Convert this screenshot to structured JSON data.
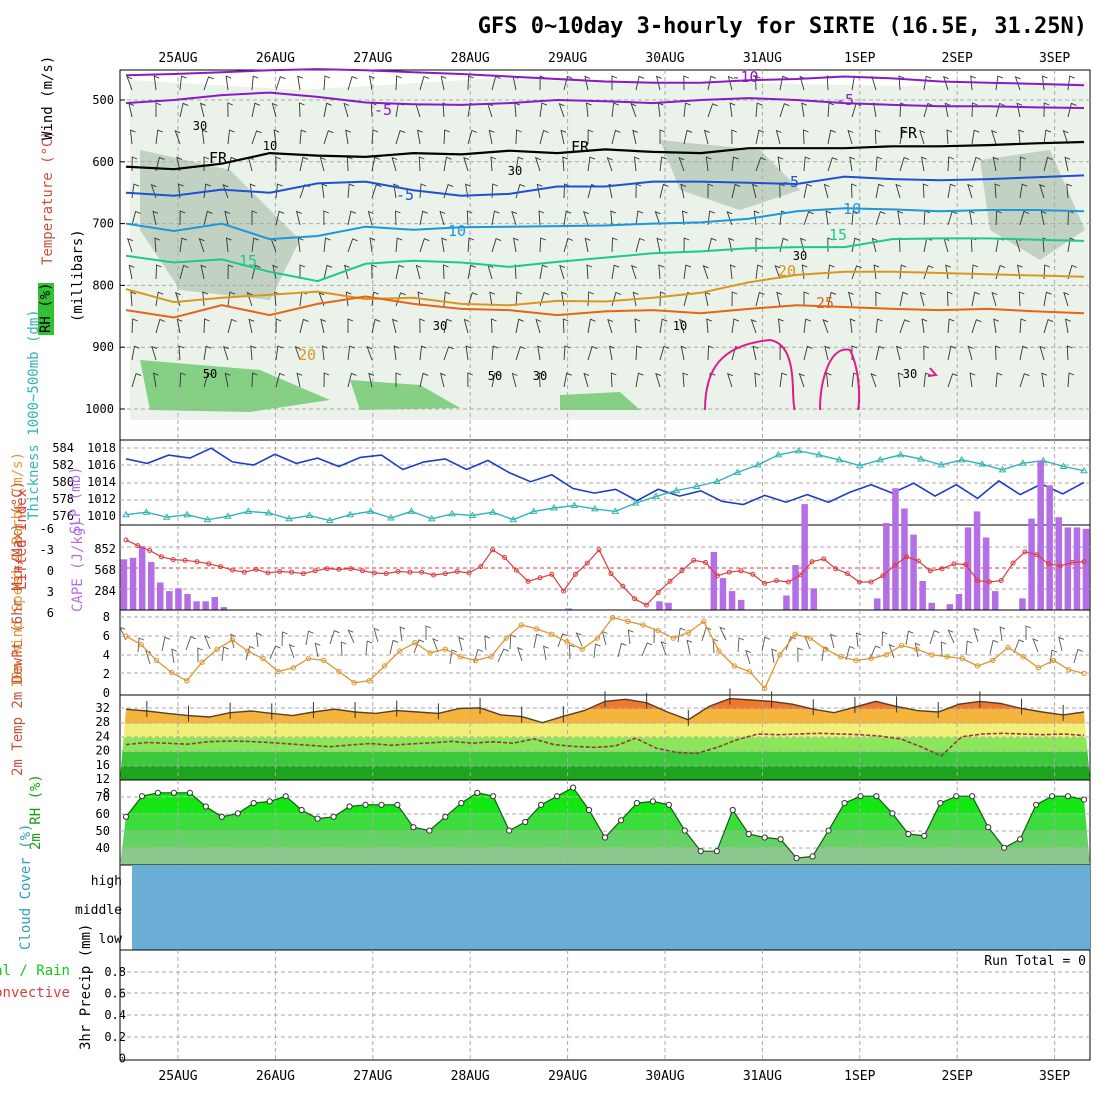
{
  "title": "GFS 0~10day 3-hourly for SIRTE (16.5E, 31.25N)",
  "dates": [
    "25AUG",
    "26AUG",
    "27AUG",
    "28AUG",
    "29AUG",
    "30AUG",
    "31AUG",
    "1SEP",
    "2SEP",
    "3SEP"
  ],
  "colors": {
    "purple": "#8a19c8",
    "black": "#000000",
    "blue": "#1e50d2",
    "lightblue": "#1e96dc",
    "teal": "#1ec88c",
    "orange": "#dc961e",
    "darkorange": "#e66414",
    "magenta": "#dc1e8c",
    "slp": "#1e3cc8",
    "thickness": "#32b4b4",
    "lifted": "#dc3c3c",
    "cape": "#b46ee6",
    "wind": "#dc9632",
    "rh": "#10e010",
    "cloud": "#6aaed6"
  },
  "chart_data": [
    {
      "type": "line",
      "title": "Upper-air time-height section",
      "ylabel_parts": [
        "RH (%)",
        "Temperature (°C)",
        "Wind (m/s)",
        "(millibars)"
      ],
      "y_ticks": [
        "500",
        "600",
        "700",
        "800",
        "900",
        "1000"
      ],
      "ylim": [
        1000,
        450
      ],
      "contour_labels": [
        {
          "text": "-10",
          "series": "purple"
        },
        {
          "text": "-5",
          "series": "purple"
        },
        {
          "text": "-5",
          "series": "purple"
        },
        {
          "text": "FR",
          "series": "black"
        },
        {
          "text": "FR",
          "series": "black"
        },
        {
          "text": "FR",
          "series": "black"
        },
        {
          "text": "-5",
          "series": "blue"
        },
        {
          "text": "-5",
          "series": "blue"
        },
        {
          "text": "10",
          "series": "lightblue"
        },
        {
          "text": "10",
          "series": "lightblue"
        },
        {
          "text": "15",
          "series": "teal"
        },
        {
          "text": "15",
          "series": "teal"
        },
        {
          "text": "20",
          "series": "orange"
        },
        {
          "text": "25",
          "series": "darkorange"
        },
        {
          "text": "20",
          "series": "orange"
        }
      ],
      "rh_labels": [
        "30",
        "10",
        "30",
        "30",
        "50",
        "50",
        "30",
        "10",
        "30",
        "30"
      ],
      "series": [
        {
          "color": "purple",
          "values": [
            460,
            458,
            455,
            452,
            450,
            452,
            455,
            458,
            462,
            466,
            470,
            472,
            472,
            468,
            466,
            462,
            465,
            470,
            472,
            474,
            476
          ]
        },
        {
          "color": "purple",
          "values": [
            505,
            500,
            492,
            488,
            495,
            504,
            507,
            508,
            505,
            500,
            502,
            505,
            500,
            497,
            500,
            505,
            508,
            510,
            510,
            512,
            513
          ]
        },
        {
          "color": "black",
          "values": [
            608,
            612,
            603,
            586,
            590,
            592,
            586,
            588,
            582,
            586,
            580,
            584,
            586,
            578,
            578,
            578,
            575,
            575,
            573,
            570,
            568
          ]
        },
        {
          "color": "blue",
          "values": [
            650,
            655,
            645,
            650,
            635,
            632,
            646,
            655,
            652,
            640,
            640,
            632,
            632,
            634,
            636,
            624,
            628,
            630,
            628,
            625,
            622
          ]
        },
        {
          "color": "lightblue",
          "values": [
            700,
            712,
            700,
            725,
            720,
            705,
            710,
            706,
            705,
            704,
            703,
            700,
            698,
            692,
            680,
            675,
            677,
            680,
            678,
            678,
            680
          ]
        },
        {
          "color": "teal",
          "values": [
            752,
            763,
            758,
            778,
            793,
            765,
            760,
            763,
            770,
            762,
            755,
            748,
            745,
            740,
            738,
            738,
            725,
            724,
            724,
            726,
            728
          ]
        },
        {
          "color": "orange",
          "values": [
            806,
            827,
            820,
            815,
            810,
            822,
            820,
            830,
            832,
            825,
            826,
            820,
            812,
            795,
            783,
            778,
            778,
            780,
            782,
            784,
            786
          ]
        },
        {
          "color": "darkorange",
          "values": [
            840,
            852,
            832,
            848,
            830,
            818,
            830,
            838,
            840,
            848,
            842,
            840,
            845,
            838,
            832,
            835,
            838,
            840,
            838,
            842,
            845
          ]
        }
      ]
    },
    {
      "type": "line",
      "ylabel_left": "Thickness 1000~500mb (dm)",
      "ylabel_right": "SLP (mb)",
      "left_ticks": [
        "584",
        "582",
        "580",
        "578",
        "576"
      ],
      "right_ticks": [
        "1018",
        "1016",
        "1014",
        "1012",
        "1010"
      ],
      "series": [
        {
          "name": "SLP (mb)",
          "values": [
            1016.2,
            1015.6,
            1016.7,
            1016.3,
            1017.6,
            1015.8,
            1015.4,
            1016.8,
            1015.6,
            1016.3,
            1015.2,
            1016.4,
            1016.7,
            1014.8,
            1015.8,
            1016.2,
            1014.8,
            1016.0,
            1014.4,
            1013.2,
            1014.1,
            1012.3,
            1011.7,
            1012.2,
            1010.7,
            1012.2,
            1011.3,
            1012.0,
            1010.6,
            1010.2,
            1011.4,
            1010.5,
            1011.5,
            1010.5,
            1011.8,
            1012.8,
            1011.7,
            1013.0,
            1011.3,
            1012.8,
            1011.0,
            1013.3,
            1011.5,
            1012.9,
            1011.6,
            1013.1
          ]
        },
        {
          "name": "Thickness 1000~500mb (dm)",
          "values": [
            576.4,
            576.7,
            576.1,
            576.4,
            575.8,
            576.2,
            576.8,
            576.6,
            575.9,
            576.3,
            575.7,
            576.4,
            576.8,
            576.0,
            576.8,
            575.9,
            576.5,
            576.3,
            576.7,
            575.8,
            576.8,
            577.2,
            577.5,
            577.1,
            576.8,
            577.8,
            578.6,
            579.3,
            579.8,
            580.4,
            581.5,
            582.4,
            583.6,
            584.1,
            583.6,
            583.0,
            582.3,
            583.0,
            583.6,
            583.1,
            582.4,
            583.0,
            582.5,
            581.8,
            582.6,
            582.9,
            582.2,
            581.7
          ]
        }
      ]
    },
    {
      "type": "bar",
      "ylabel_left": "Lifted Index",
      "ylabel_right": "CAPE (J/kg)",
      "left_ticks": [
        "-6",
        "-3",
        "0",
        "3",
        "6"
      ],
      "right_ticks": [
        "852",
        "568",
        "284"
      ],
      "cape_values": [
        350,
        360,
        440,
        330,
        190,
        130,
        150,
        110,
        60,
        60,
        90,
        20,
        0,
        0,
        0,
        0,
        0,
        0,
        0,
        0,
        0,
        0,
        0,
        0,
        0,
        0,
        0,
        0,
        0,
        0,
        0,
        0,
        0,
        0,
        0,
        0,
        0,
        0,
        0,
        0,
        0,
        0,
        0,
        0,
        0,
        0,
        0,
        0,
        0,
        10,
        0,
        0,
        0,
        0,
        0,
        0,
        0,
        0,
        0,
        60,
        50,
        0,
        0,
        0,
        0,
        400,
        220,
        130,
        70,
        0,
        0,
        0,
        0,
        100,
        310,
        730,
        150,
        0,
        0,
        0,
        0,
        0,
        0,
        80,
        600,
        840,
        700,
        520,
        200,
        50,
        0,
        40,
        110,
        570,
        680,
        500,
        130,
        0,
        0,
        80,
        630,
        1030,
        860,
        640,
        570,
        570,
        560
      ],
      "lifted_values": [
        -4.0,
        -3.2,
        -2.5,
        -1.6,
        -1.2,
        -1.1,
        -0.9,
        -0.6,
        -0.2,
        0.3,
        0.6,
        0.2,
        0.7,
        0.5,
        0.6,
        0.8,
        0.4,
        0.1,
        0.2,
        0.1,
        0.4,
        0.7,
        0.8,
        0.5,
        0.6,
        0.6,
        1.0,
        0.8,
        0.5,
        0.7,
        -0.2,
        -2.6,
        -1.5,
        0.3,
        1.9,
        1.4,
        0.9,
        3.3,
        0.9,
        -0.7,
        -2.6,
        0.8,
        2.6,
        4.4,
        5.3,
        3.5,
        1.9,
        0.4,
        -1.1,
        -0.8,
        1.1,
        0.6,
        0.4,
        0.9,
        2.2,
        1.8,
        2.0,
        1.0,
        -0.9,
        -1.3,
        0.1,
        0.8,
        2.0,
        2.0,
        1.1,
        -0.4,
        -1.6,
        -1.0,
        0.4,
        0.1,
        -0.6,
        -0.5,
        1.8,
        2.0,
        1.8,
        -0.7,
        -2.3,
        -1.9,
        -0.6,
        -0.3,
        -0.8,
        -0.9
      ]
    },
    {
      "type": "line",
      "ylabel": "10m Wind Speed & Barbs (m/s)",
      "y_ticks": [
        "8",
        "6",
        "4",
        "2",
        "0"
      ],
      "ylim": [
        0,
        8
      ],
      "series": [
        {
          "name": "Speed",
          "values": [
            6.0,
            5.1,
            3.4,
            2.1,
            1.2,
            3.2,
            4.6,
            5.6,
            4.4,
            3.6,
            2.2,
            2.6,
            3.6,
            3.4,
            2.2,
            1.0,
            1.2,
            2.8,
            4.4,
            5.3,
            4.2,
            4.6,
            3.8,
            3.4,
            3.8,
            5.8,
            7.2,
            6.8,
            6.2,
            5.4,
            4.6,
            5.8,
            8.0,
            7.6,
            7.2,
            6.6,
            5.8,
            6.4,
            7.6,
            4.4,
            2.8,
            2.2,
            0.4,
            4.0,
            6.2,
            5.8,
            4.6,
            3.8,
            3.4,
            3.6,
            4.0,
            5.0,
            4.6,
            4.0,
            3.8,
            3.6,
            2.8,
            3.4,
            4.8,
            3.8,
            2.6,
            3.4,
            2.4,
            2.0
          ]
        }
      ]
    },
    {
      "type": "area",
      "ylabel": "2m Temp 2m DewPt (6hr Min/Max) (°C)",
      "y_ticks": [
        "32",
        "28",
        "24",
        "20",
        "16",
        "12",
        "8"
      ],
      "ylim": [
        8,
        32
      ],
      "series": [
        {
          "name": "2m Temp",
          "values": [
            28.0,
            27.5,
            26.8,
            26.2,
            25.8,
            27.0,
            27.5,
            26.8,
            26.2,
            27.2,
            28.0,
            27.2,
            26.8,
            27.6,
            27.2,
            26.8,
            28.2,
            28.4,
            26.4,
            25.9,
            24.2,
            26.0,
            27.6,
            30.2,
            30.8,
            29.8,
            27.2,
            25.0,
            28.8,
            31.0,
            30.6,
            30.2,
            29.4,
            28.0,
            27.0,
            28.6,
            30.2,
            28.8,
            27.6,
            27.2,
            29.4,
            30.2,
            29.6,
            28.2,
            27.2,
            26.4,
            27.2
          ]
        },
        {
          "name": "2m DewPt",
          "values": [
            18.0,
            18.6,
            18.4,
            18.1,
            18.8,
            19.0,
            18.9,
            18.6,
            18.2,
            17.8,
            17.4,
            17.9,
            18.3,
            17.8,
            18.2,
            18.5,
            18.9,
            18.4,
            18.8,
            18.4,
            19.6,
            18.0,
            17.5,
            17.2,
            17.6,
            19.8,
            17.0,
            15.8,
            15.5,
            17.2,
            19.4,
            21.0,
            20.8,
            21.0,
            21.2,
            21.0,
            20.8,
            20.4,
            19.6,
            17.4,
            14.8,
            20.2,
            21.0,
            21.2,
            21.0,
            20.8,
            21.0,
            20.6
          ]
        }
      ]
    },
    {
      "type": "area",
      "ylabel": "2m RH (%)",
      "y_ticks": [
        "70",
        "60",
        "50",
        "40"
      ],
      "ylim": [
        30,
        77
      ],
      "series": [
        {
          "name": "2m RH",
          "values": [
            58,
            70,
            72,
            72,
            72,
            64,
            58,
            60,
            66,
            67,
            70,
            62,
            57,
            58,
            64,
            65,
            65,
            65,
            52,
            50,
            58,
            66,
            72,
            70,
            50,
            55,
            65,
            70,
            75,
            62,
            46,
            56,
            66,
            67,
            65,
            50,
            38,
            38,
            62,
            48,
            46,
            45,
            34,
            35,
            50,
            66,
            70,
            70,
            60,
            48,
            47,
            66,
            70,
            70,
            52,
            40,
            45,
            65,
            70,
            70,
            68
          ]
        }
      ]
    },
    {
      "type": "area",
      "ylabel": "Cloud Cover (%)",
      "y_ticks": [
        "high",
        "middle",
        "low"
      ]
    },
    {
      "type": "line",
      "ylabel_left": "Total / Rain",
      "ylabel_left2": "Convective",
      "ylabel": "3hr Precip (mm)",
      "y_ticks": [
        "0.8",
        "0.6",
        "0.4",
        "0.2",
        "0"
      ],
      "ylim": [
        0,
        1
      ],
      "annotation": "Run Total = 0",
      "values": []
    }
  ]
}
